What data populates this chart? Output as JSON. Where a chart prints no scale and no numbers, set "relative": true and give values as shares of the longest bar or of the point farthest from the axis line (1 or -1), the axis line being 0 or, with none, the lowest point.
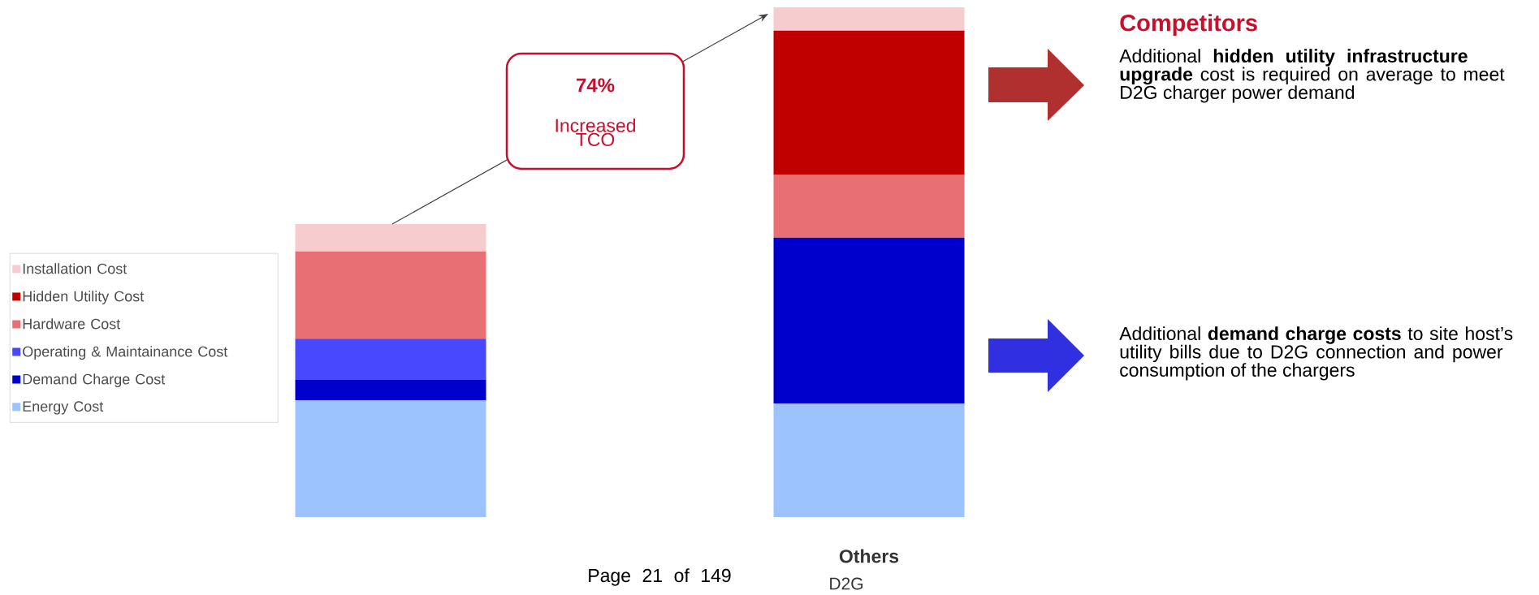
{
  "chart_data": {
    "type": "bar",
    "stacked": true,
    "relative": true,
    "legend": "left",
    "categories": [
      null,
      "Others"
    ],
    "series": [
      {
        "name": "Energy Cost",
        "color": "#9dc3fe",
        "values": [
          0.229,
          0.223
        ]
      },
      {
        "name": "Demand Charge Cost",
        "color": "#0000cc",
        "values": [
          0.04,
          0.325
        ]
      },
      {
        "name": "Operating & Maintainance Cost",
        "color": "#4848ff",
        "values": [
          0.081,
          0
        ]
      },
      {
        "name": "Hardware Cost",
        "color": "#e87074",
        "values": [
          0.171,
          0.123
        ]
      },
      {
        "name": "Hidden Utility Cost",
        "color": "#c00000",
        "values": [
          0,
          0.283
        ]
      },
      {
        "name": "Installation Cost",
        "color": "#f6cccf",
        "values": [
          0.054,
          0.046
        ]
      }
    ],
    "annotations": [
      "74%",
      "Increased TCO",
      "Competitors",
      "Additional **hidden utility infrastructure upgrade** cost is required on average to meet D2G charger power demand",
      "Additional **demand charge costs** to site host’s utility bills due to D2G connection and power consumption of the chargers",
      "D2G",
      "Page 21 of 149"
    ]
  }
}
